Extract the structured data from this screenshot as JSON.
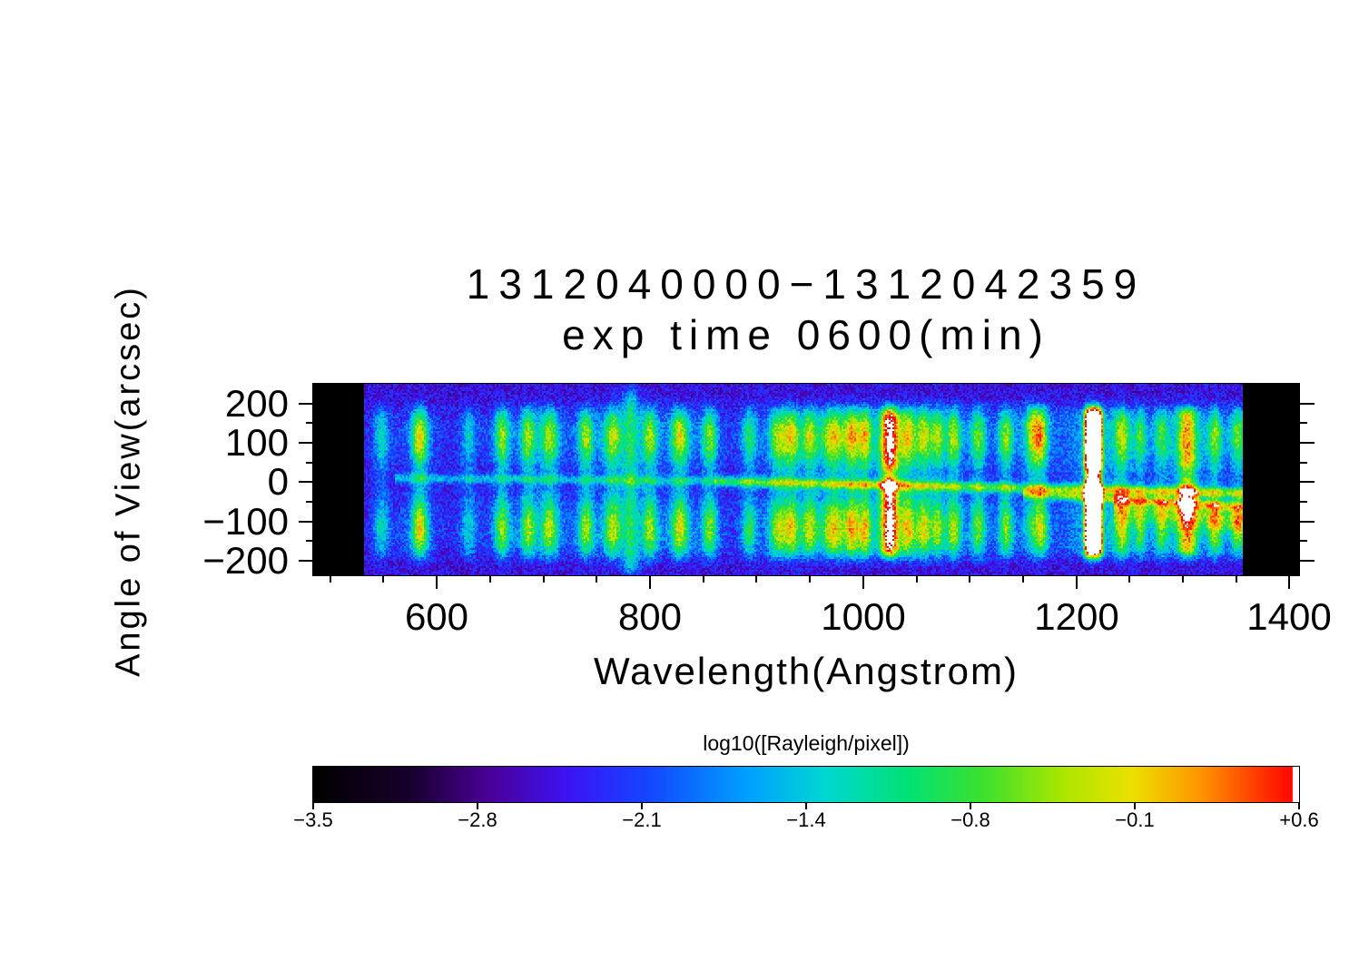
{
  "title": {
    "line1": "1312040000−1312042359",
    "line2": "exp time 0600(min)"
  },
  "axes": {
    "y_label": "Angle of View(arcsec)",
    "x_label": "Wavelength(Angstrom)",
    "y_tick_labels": [
      "200",
      "100",
      "0",
      "−100",
      "−200"
    ],
    "x_tick_labels": [
      "600",
      "800",
      "1000",
      "1200",
      "1400"
    ]
  },
  "colorbar": {
    "title": "log10([Rayleigh/pixel])",
    "tick_labels": [
      "−3.5",
      "−2.8",
      "−2.1",
      "−1.4",
      "−0.8",
      "−0.1",
      "+0.6"
    ]
  },
  "chart_data": {
    "type": "heatmap",
    "title": "1312040000−1312042359",
    "subtitle": "exp time 0600(min)",
    "xlabel": "Wavelength(Angstrom)",
    "ylabel": "Angle of View(arcsec)",
    "value_label": "log10([Rayleigh/pixel])",
    "xlim": [
      484,
      1409
    ],
    "ylim": [
      -237,
      250
    ],
    "x_ticks": [
      600,
      800,
      1000,
      1200,
      1400
    ],
    "x_minor_step": 50,
    "y_ticks": [
      200,
      100,
      0,
      -100,
      -200
    ],
    "y_minor_step": 50,
    "value_range": [
      -3.5,
      0.6
    ],
    "colorbar_ticks": [
      -3.5,
      -2.8,
      -2.1,
      -1.4,
      -0.8,
      -0.1,
      0.6
    ],
    "data_wavelength_range": [
      531,
      1356
    ],
    "background_log10": -2.5,
    "noise_amplitude": 0.35,
    "emission_bands": [
      {
        "wavelength": 548,
        "amplitude": 1.0,
        "sigma": 5,
        "profile": "dumbbell"
      },
      {
        "wavelength": 584,
        "amplitude": 2.0,
        "sigma": 5.5,
        "profile": "dumbbell"
      },
      {
        "wavelength": 630,
        "amplitude": 0.9,
        "sigma": 5,
        "profile": "dumbbell"
      },
      {
        "wavelength": 661,
        "amplitude": 1.6,
        "sigma": 5,
        "profile": "dumbbell"
      },
      {
        "wavelength": 686,
        "amplitude": 1.5,
        "sigma": 5,
        "profile": "dumbbell"
      },
      {
        "wavelength": 706,
        "amplitude": 1.65,
        "sigma": 6,
        "profile": "dumbbell"
      },
      {
        "wavelength": 740,
        "amplitude": 1.6,
        "sigma": 5,
        "profile": "dumbbell"
      },
      {
        "wavelength": 765,
        "amplitude": 1.65,
        "sigma": 6,
        "profile": "dumbbell"
      },
      {
        "wavelength": 782,
        "amplitude": 1.2,
        "sigma": 5,
        "profile": "column"
      },
      {
        "wavelength": 800,
        "amplitude": 1.55,
        "sigma": 5,
        "profile": "dumbbell"
      },
      {
        "wavelength": 828,
        "amplitude": 1.85,
        "sigma": 6,
        "profile": "dumbbell"
      },
      {
        "wavelength": 856,
        "amplitude": 1.55,
        "sigma": 5,
        "profile": "dumbbell"
      },
      {
        "wavelength": 893,
        "amplitude": 1.2,
        "sigma": 5,
        "profile": "dumbbell"
      },
      {
        "wavelength": 920,
        "amplitude": 1.5,
        "sigma": 6,
        "profile": "dumbbell"
      },
      {
        "wavelength": 933,
        "amplitude": 1.5,
        "sigma": 5,
        "profile": "dumbbell"
      },
      {
        "wavelength": 950,
        "amplitude": 1.45,
        "sigma": 5,
        "profile": "dumbbell"
      },
      {
        "wavelength": 972,
        "amplitude": 1.8,
        "sigma": 8,
        "profile": "dumbbell"
      },
      {
        "wavelength": 990,
        "amplitude": 1.6,
        "sigma": 5,
        "profile": "dumbbell"
      },
      {
        "wavelength": 1002,
        "amplitude": 1.5,
        "sigma": 4,
        "profile": "dumbbell"
      },
      {
        "wavelength": 1025,
        "amplitude": 2.7,
        "sigma": 6,
        "profile": "fullwaist"
      },
      {
        "wavelength": 1042,
        "amplitude": 1.55,
        "sigma": 5,
        "profile": "dumbbell"
      },
      {
        "wavelength": 1057,
        "amplitude": 1.5,
        "sigma": 5,
        "profile": "dumbbell"
      },
      {
        "wavelength": 1070,
        "amplitude": 1.3,
        "sigma": 4,
        "profile": "dumbbell"
      },
      {
        "wavelength": 1085,
        "amplitude": 1.6,
        "sigma": 5,
        "profile": "dumbbell"
      },
      {
        "wavelength": 1108,
        "amplitude": 1.45,
        "sigma": 5,
        "profile": "dumbbell"
      },
      {
        "wavelength": 1134,
        "amplitude": 1.5,
        "sigma": 5,
        "profile": "dumbbell"
      },
      {
        "wavelength": 1160,
        "amplitude": 1.75,
        "sigma": 6,
        "profile": "top"
      },
      {
        "wavelength": 1168,
        "amplitude": 1.2,
        "sigma": 4,
        "profile": "dumbbell"
      },
      {
        "wavelength": 1216,
        "amplitude": 4.2,
        "sigma": 7,
        "profile": "fullwaist",
        "shape": "flat"
      },
      {
        "wavelength": 1243,
        "amplitude": 1.5,
        "sigma": 5,
        "profile": "dumbbell"
      },
      {
        "wavelength": 1260,
        "amplitude": 1.1,
        "sigma": 4,
        "profile": "dumbbell"
      },
      {
        "wavelength": 1280,
        "amplitude": 1.2,
        "sigma": 5,
        "profile": "dumbbell"
      },
      {
        "wavelength": 1304,
        "amplitude": 2.1,
        "sigma": 7,
        "profile": "fullwaist"
      },
      {
        "wavelength": 1330,
        "amplitude": 1.4,
        "sigma": 5,
        "profile": "dumbbell"
      },
      {
        "wavelength": 1352,
        "amplitude": 1.5,
        "sigma": 5,
        "profile": "dumbbell"
      }
    ],
    "horizontal_features": [
      {
        "kind": "line",
        "w0": 560,
        "w1": 860,
        "a0": 10,
        "a1": 2,
        "sigma": 8,
        "amplitude": 0.8
      },
      {
        "kind": "line",
        "w0": 860,
        "w1": 1356,
        "a0": 2,
        "a1": -28,
        "sigma": 9,
        "amplitude": 1.5
      },
      {
        "kind": "line",
        "w0": 1150,
        "w1": 1356,
        "a0": -30,
        "a1": -62,
        "sigma": 8,
        "amplitude": 1.2
      },
      {
        "kind": "glow",
        "w0": 1235,
        "w1": 1356,
        "a0": -58,
        "a1": -95,
        "sigma": 26,
        "amplitude": 1.0
      }
    ],
    "colormap_stops": [
      {
        "t": 0.0,
        "rgb": [
          0,
          0,
          0
        ]
      },
      {
        "t": 0.1,
        "rgb": [
          25,
          0,
          45
        ]
      },
      {
        "t": 0.18,
        "rgb": [
          75,
          0,
          155
        ]
      },
      {
        "t": 0.26,
        "rgb": [
          60,
          20,
          245
        ]
      },
      {
        "t": 0.34,
        "rgb": [
          20,
          70,
          255
        ]
      },
      {
        "t": 0.44,
        "rgb": [
          0,
          160,
          255
        ]
      },
      {
        "t": 0.52,
        "rgb": [
          0,
          215,
          210
        ]
      },
      {
        "t": 0.6,
        "rgb": [
          0,
          225,
          120
        ]
      },
      {
        "t": 0.68,
        "rgb": [
          60,
          225,
          45
        ]
      },
      {
        "t": 0.76,
        "rgb": [
          170,
          230,
          0
        ]
      },
      {
        "t": 0.83,
        "rgb": [
          235,
          225,
          0
        ]
      },
      {
        "t": 0.9,
        "rgb": [
          255,
          150,
          0
        ]
      },
      {
        "t": 0.97,
        "rgb": [
          255,
          40,
          0
        ]
      },
      {
        "t": 1.0,
        "rgb": [
          255,
          0,
          0
        ]
      }
    ],
    "over_range_color": "#ffffff"
  }
}
